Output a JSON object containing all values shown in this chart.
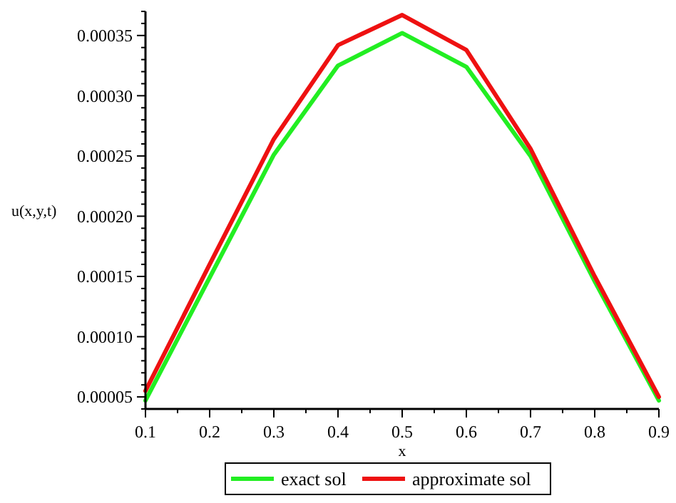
{
  "chart_data": {
    "type": "line",
    "xlabel": "x",
    "ylabel": "u(x,y,t)",
    "x": [
      0.1,
      0.2,
      0.3,
      0.4,
      0.5,
      0.6,
      0.7,
      0.8,
      0.9
    ],
    "series": [
      {
        "name": "exact sol",
        "color": "#22ee22",
        "values": [
          4.7e-05,
          0.000149,
          0.000251,
          0.000325,
          0.000352,
          0.000324,
          0.00025,
          0.000146,
          4.7e-05
        ]
      },
      {
        "name": "approximate sol",
        "color": "#ee1111",
        "values": [
          5.5e-05,
          0.00016,
          0.000264,
          0.000342,
          0.000367,
          0.000338,
          0.000256,
          0.00015,
          5e-05
        ]
      }
    ],
    "xlim": [
      0.1,
      0.9
    ],
    "xticks": [
      {
        "value": 0.1,
        "label": "0.1"
      },
      {
        "value": 0.2,
        "label": "0.2"
      },
      {
        "value": 0.3,
        "label": "0.3"
      },
      {
        "value": 0.4,
        "label": "0.4"
      },
      {
        "value": 0.5,
        "label": "0.5"
      },
      {
        "value": 0.6,
        "label": "0.6"
      },
      {
        "value": 0.7,
        "label": "0.7"
      },
      {
        "value": 0.8,
        "label": "0.8"
      },
      {
        "value": 0.9,
        "label": "0.9"
      }
    ],
    "ylim": [
      4e-05,
      0.00037
    ],
    "yticks": [
      {
        "value": 5e-05,
        "label": "0.00005"
      },
      {
        "value": 0.0001,
        "label": "0.00010"
      },
      {
        "value": 0.00015,
        "label": "0.00015"
      },
      {
        "value": 0.0002,
        "label": "0.00020"
      },
      {
        "value": 0.00025,
        "label": "0.00025"
      },
      {
        "value": 0.0003,
        "label": "0.00030"
      },
      {
        "value": 0.00035,
        "label": "0.00035"
      }
    ],
    "legend": "bottom",
    "line_style": "solid",
    "grid": false
  }
}
